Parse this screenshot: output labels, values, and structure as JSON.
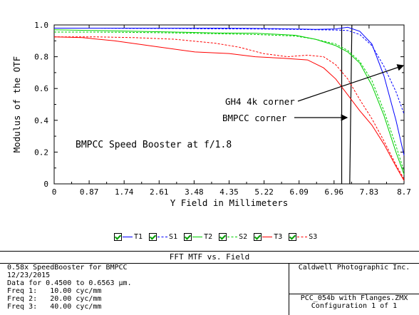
{
  "chart_data": {
    "type": "line",
    "xlabel": "Y Field in Millimeters",
    "ylabel": "Modulus of the OTF",
    "xlim": [
      0,
      8.7
    ],
    "ylim": [
      0,
      1.0
    ],
    "xticks": [
      "0",
      "0.87",
      "1.74",
      "2.61",
      "3.48",
      "4.35",
      "5.22",
      "6.09",
      "6.96",
      "7.83",
      "8.7"
    ],
    "yticks": [
      "0",
      "0.2",
      "0.4",
      "0.6",
      "0.8",
      "1.0"
    ],
    "grid": false,
    "legend": "bottom",
    "series": [
      {
        "name": "T1",
        "color": "#0000ff",
        "dash": false,
        "x": [
          0,
          1,
          2,
          3,
          4,
          5,
          6,
          6.5,
          7.0,
          7.3,
          7.6,
          7.9,
          8.2,
          8.5,
          8.7
        ],
        "y": [
          0.98,
          0.98,
          0.98,
          0.98,
          0.98,
          0.978,
          0.975,
          0.972,
          0.975,
          0.985,
          0.96,
          0.88,
          0.68,
          0.4,
          0.18
        ]
      },
      {
        "name": "S1",
        "color": "#0000ff",
        "dash": true,
        "x": [
          0,
          1,
          2,
          3,
          4,
          5,
          6,
          6.5,
          7.0,
          7.3,
          7.6,
          7.9,
          8.2,
          8.5,
          8.7
        ],
        "y": [
          0.98,
          0.98,
          0.978,
          0.978,
          0.976,
          0.975,
          0.972,
          0.97,
          0.968,
          0.965,
          0.94,
          0.87,
          0.74,
          0.58,
          0.44
        ]
      },
      {
        "name": "T2",
        "color": "#00d000",
        "dash": false,
        "x": [
          0,
          1,
          2,
          3,
          4,
          5,
          6,
          6.5,
          7.0,
          7.3,
          7.6,
          7.9,
          8.2,
          8.5,
          8.7
        ],
        "y": [
          0.97,
          0.965,
          0.96,
          0.955,
          0.95,
          0.948,
          0.935,
          0.91,
          0.87,
          0.83,
          0.76,
          0.62,
          0.43,
          0.2,
          0.06
        ]
      },
      {
        "name": "S2",
        "color": "#00d000",
        "dash": true,
        "x": [
          0,
          1,
          2,
          3,
          4,
          5,
          6,
          6.5,
          7.0,
          7.3,
          7.6,
          7.9,
          8.2,
          8.5,
          8.7
        ],
        "y": [
          0.955,
          0.955,
          0.953,
          0.95,
          0.945,
          0.94,
          0.93,
          0.91,
          0.88,
          0.84,
          0.77,
          0.65,
          0.46,
          0.24,
          0.08
        ]
      },
      {
        "name": "T3",
        "color": "#ff0000",
        "dash": false,
        "x": [
          0,
          0.7,
          1.5,
          2.5,
          3.5,
          4.35,
          5.0,
          5.7,
          6.3,
          6.7,
          7.0,
          7.3,
          7.6,
          7.9,
          8.2,
          8.5,
          8.7
        ],
        "y": [
          0.925,
          0.92,
          0.9,
          0.865,
          0.83,
          0.82,
          0.8,
          0.79,
          0.78,
          0.73,
          0.66,
          0.56,
          0.46,
          0.37,
          0.25,
          0.11,
          0.02
        ]
      },
      {
        "name": "S3",
        "color": "#ff0000",
        "dash": true,
        "x": [
          0,
          1,
          2,
          3,
          4,
          4.6,
          5.2,
          5.8,
          6.3,
          6.7,
          7.0,
          7.3,
          7.6,
          7.9,
          8.2,
          8.5,
          8.7
        ],
        "y": [
          0.925,
          0.925,
          0.92,
          0.91,
          0.885,
          0.86,
          0.82,
          0.8,
          0.81,
          0.8,
          0.75,
          0.66,
          0.53,
          0.41,
          0.27,
          0.12,
          0.03
        ]
      }
    ],
    "annotations": [
      {
        "text": "BMPCC Speed Booster at f/1.8"
      },
      {
        "text": "GH4 4k corner"
      },
      {
        "text": "BMPCC corner"
      }
    ],
    "reference_lines": {
      "x": [
        7.15,
        7.35
      ]
    }
  },
  "legend_items": [
    {
      "name": "T1",
      "color": "#0000ff",
      "dash": false
    },
    {
      "name": "S1",
      "color": "#0000ff",
      "dash": true
    },
    {
      "name": "T2",
      "color": "#00d000",
      "dash": false
    },
    {
      "name": "S2",
      "color": "#00d000",
      "dash": true
    },
    {
      "name": "T3",
      "color": "#ff0000",
      "dash": false
    },
    {
      "name": "S3",
      "color": "#ff0000",
      "dash": true
    }
  ],
  "info": {
    "title": "FFT MTF vs. Field",
    "left_lines": "0.58x SpeedBooster for BMPCC\n12/23/2015\nData for 0.4500 to 0.6563 µm.\nFreq 1:   10.00 cyc/mm\nFreq 2:   20.00 cyc/mm\nFreq 3:   40.00 cyc/mm",
    "company": "Caldwell Photographic Inc.",
    "file": "PCC_054b with Flanges.ZMX",
    "config": "Configuration 1 of 1"
  }
}
